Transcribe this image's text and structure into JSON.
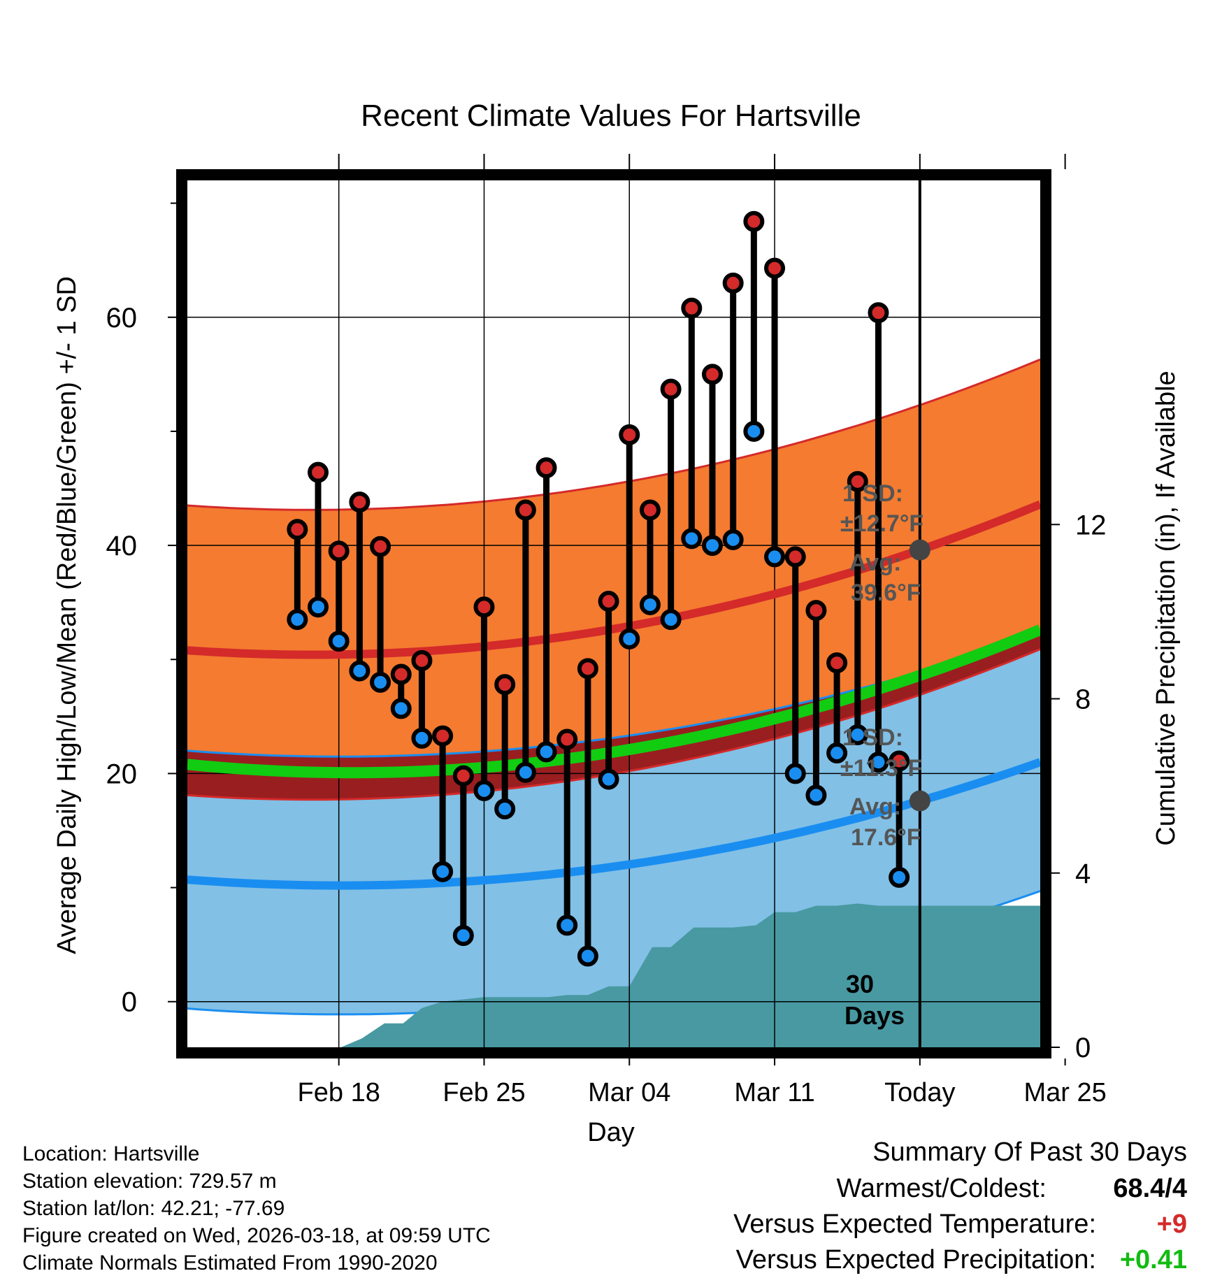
{
  "chart_data": {
    "type": "line",
    "title": "Recent Climate Values For Hartsville",
    "xlabel": "Day",
    "ylabel": "Average Daily High/Low/Mean (Red/Blue/Green) +/- 1 SD",
    "y2label": "Cumulative Precipitation (in), If Available",
    "x_range_days": [
      -35.3,
      5.8
    ],
    "ylim": [
      -4,
      72
    ],
    "y2lim": [
      0,
      19.9
    ],
    "x_tick_labels": [
      "Feb 18",
      "Feb 25",
      "Mar 04",
      "Mar 11",
      "Today",
      "Mar 25"
    ],
    "x_tick_days": [
      -28,
      -21,
      -14,
      -7,
      0,
      7
    ],
    "y_ticks": [
      0,
      20,
      40,
      60
    ],
    "y_minor_ticks": [
      10,
      30,
      50,
      70
    ],
    "y2_ticks": [
      0,
      4,
      8,
      12
    ],
    "colors": {
      "high_band": "#f47b30",
      "high_line": "#d42a2a",
      "low_band": "#82c0e6",
      "low_line": "#1a8ef0",
      "mean_line": "#11cc11",
      "overlap_band": "#9a1515",
      "precip": "#4899a2",
      "high_dot": "#d42a2a",
      "low_dot": "#1a8ef0",
      "today_dot": "#444444",
      "anno_text": "#555555",
      "temp_anomaly": "#d42a2a",
      "precip_anomaly": "#11bb11"
    },
    "normals": {
      "days": [
        -35.3,
        0,
        5.8
      ],
      "high_avg": [
        30.8,
        39.6,
        43.6
      ],
      "high_sd": 12.7,
      "low_avg": [
        10.7,
        17.6,
        21.0
      ],
      "low_sd": 11.3,
      "mean_avg": [
        20.8,
        28.6,
        32.6
      ]
    },
    "series": [
      {
        "name": "Daily High",
        "days": [
          -30,
          -29,
          -28,
          -27,
          -26,
          -25,
          -24,
          -23,
          -22,
          -21,
          -20,
          -19,
          -18,
          -17,
          -16,
          -15,
          -14,
          -13,
          -12,
          -11,
          -10,
          -9,
          -8,
          -7,
          -6,
          -5,
          -4,
          -3,
          -2,
          -1
        ],
        "values": [
          41.4,
          46.4,
          39.5,
          43.8,
          39.9,
          28.7,
          29.9,
          23.3,
          19.8,
          34.6,
          27.8,
          43.1,
          46.8,
          23.0,
          29.2,
          35.1,
          49.7,
          43.1,
          53.7,
          60.8,
          55.0,
          63.0,
          68.4,
          64.3,
          39.0,
          34.3,
          29.7,
          45.6,
          60.4,
          21.1
        ]
      },
      {
        "name": "Daily Low",
        "days": [
          -30,
          -29,
          -28,
          -27,
          -26,
          -25,
          -24,
          -23,
          -22,
          -21,
          -20,
          -19,
          -18,
          -17,
          -16,
          -15,
          -14,
          -13,
          -12,
          -11,
          -10,
          -9,
          -8,
          -7,
          -6,
          -5,
          -4,
          -3,
          -2,
          -1
        ],
        "values": [
          33.5,
          34.6,
          31.6,
          29.0,
          28.0,
          25.7,
          23.1,
          11.4,
          5.8,
          18.5,
          16.9,
          20.1,
          21.9,
          6.7,
          4.0,
          19.5,
          31.8,
          34.8,
          33.5,
          40.6,
          40.0,
          40.5,
          50.0,
          39.0,
          20.0,
          18.1,
          21.8,
          23.4,
          21.0,
          10.9
        ]
      },
      {
        "name": "Cumulative Precipitation",
        "days": [
          -27.9,
          -26.9,
          -25.8,
          -24.9,
          -24.0,
          -23.0,
          -22.0,
          -21.0,
          -19.9,
          -19.0,
          -17.9,
          -17.0,
          -16.0,
          -15.0,
          -14.0,
          -12.9,
          -12.0,
          -10.9,
          -10.0,
          -9.0,
          -7.9,
          -7.0,
          -6.0,
          -5.0,
          -4.0,
          -3.0,
          -2.0,
          -1.0,
          0.0,
          5.8
        ],
        "values": [
          0.0,
          0.2,
          0.55,
          0.55,
          0.9,
          1.05,
          1.1,
          1.15,
          1.15,
          1.15,
          1.15,
          1.2,
          1.2,
          1.4,
          1.4,
          2.3,
          2.3,
          2.75,
          2.75,
          2.75,
          2.8,
          3.1,
          3.1,
          3.25,
          3.25,
          3.3,
          3.25,
          3.25,
          3.25,
          3.25
        ]
      }
    ],
    "today_label": "Today",
    "days_label_num": "30",
    "days_label_word": "Days",
    "high_annotation": {
      "sd_label": "1 SD:",
      "sd_value": "±12.7°F",
      "avg_label": "Avg:",
      "avg_value": "39.6°F"
    },
    "low_annotation": {
      "sd_label": "1 SD:",
      "sd_value": "±11.3°F",
      "avg_label": "Avg:",
      "avg_value": "17.6°F"
    }
  },
  "footer": {
    "location": "Location: Hartsville",
    "elevation": "Station elevation: 729.57 m",
    "latlon": "Station lat/lon: 42.21; -77.69",
    "created": "Figure created on Wed, 2026-03-18, at 09:59 UTC",
    "normals": "Climate Normals Estimated From 1990-2020"
  },
  "summary": {
    "title": "Summary Of Past 30 Days",
    "warm_cold_label": "Warmest/Coldest:",
    "warm_cold_value": "68.4/4",
    "temp_label": "Versus Expected Temperature:",
    "temp_value": "+9",
    "precip_label": "Versus Expected Precipitation:",
    "precip_value": "+0.41"
  }
}
